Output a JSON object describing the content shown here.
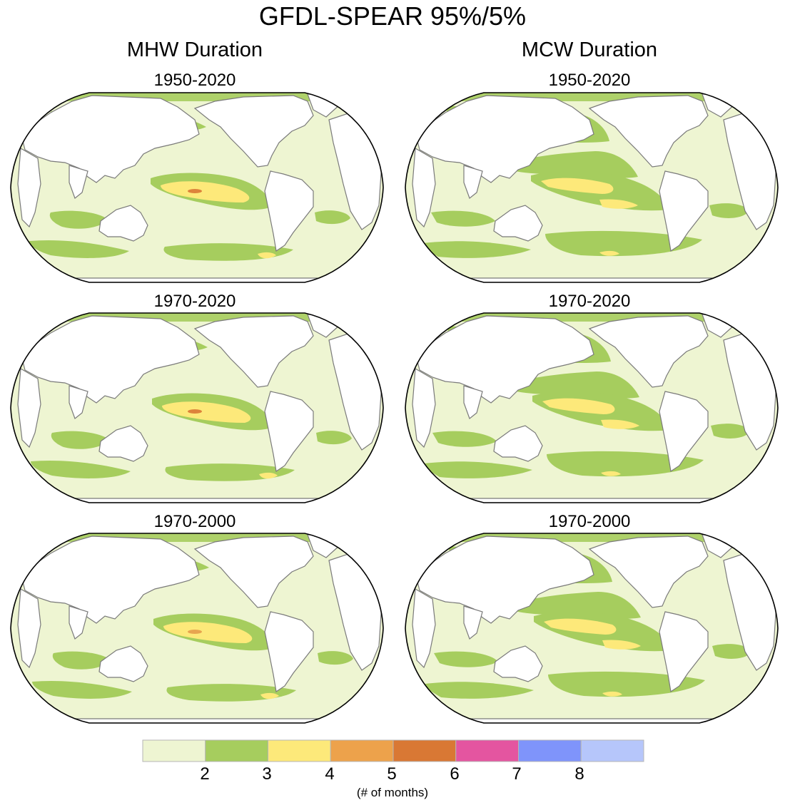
{
  "title": "GFDL-SPEAR 95%/5%",
  "columns": [
    {
      "heading": "MHW Duration",
      "panels": [
        "1950-2020",
        "1970-2020",
        "1970-2000"
      ]
    },
    {
      "heading": "MCW Duration",
      "panels": [
        "1950-2020",
        "1970-2020",
        "1970-2000"
      ]
    }
  ],
  "colorbar": {
    "colors": [
      "#eef5d2",
      "#a6cd5e",
      "#fde97a",
      "#eda24b",
      "#d97834",
      "#e455a0",
      "#7f94fb",
      "#b6c6fb"
    ],
    "ticks": [
      "2",
      "3",
      "4",
      "5",
      "6",
      "7",
      "8"
    ],
    "units": "(# of months)"
  },
  "chart_data": {
    "type": "heatmap",
    "projection": "Robinson (Pacific-centered)",
    "title": "GFDL-SPEAR 95%/5%",
    "legend_levels": [
      2,
      3,
      4,
      5,
      6,
      7,
      8
    ],
    "legend_units": "(# of months)",
    "legend_placement": "bottom"
  }
}
